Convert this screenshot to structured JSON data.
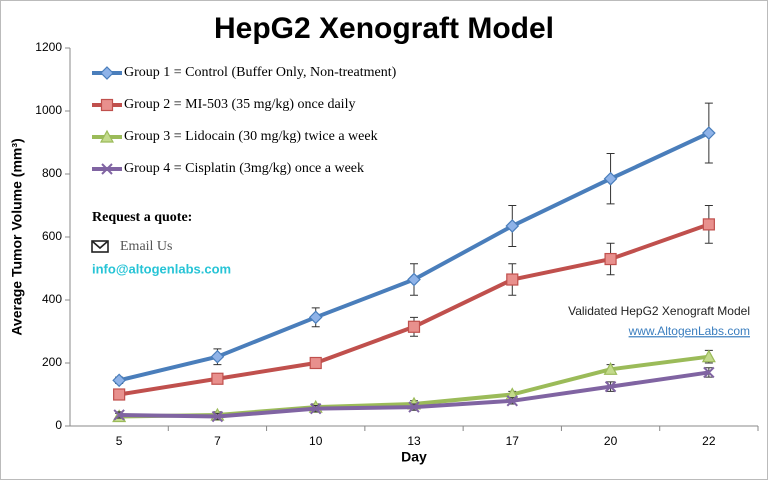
{
  "chart_data": {
    "type": "line",
    "title": "HepG2 Xenograft Model",
    "xlabel": "Day",
    "ylabel": "Average Tumor Volume (mm³)",
    "categories": [
      "5",
      "7",
      "10",
      "13",
      "17",
      "20",
      "22"
    ],
    "series": [
      {
        "name": "Group 1 = Control (Buffer Only, Non-treatment)",
        "color": "#4a7ebb",
        "marker": "diamond",
        "values": [
          145,
          220,
          345,
          465,
          635,
          785,
          930
        ],
        "errors": [
          10,
          25,
          30,
          50,
          65,
          80,
          95
        ]
      },
      {
        "name": "Group 2 = MI-503 (35 mg/kg) once daily",
        "color": "#c0504d",
        "marker": "square",
        "values": [
          100,
          150,
          200,
          315,
          465,
          530,
          640
        ],
        "errors": [
          10,
          10,
          10,
          30,
          50,
          50,
          60
        ]
      },
      {
        "name": "Group 3 = Lidocain (30 mg/kg) twice a week",
        "color": "#9bbb59",
        "marker": "triangle",
        "values": [
          30,
          35,
          60,
          70,
          100,
          180,
          220
        ],
        "errors": [
          10,
          10,
          10,
          10,
          10,
          15,
          20
        ]
      },
      {
        "name": "Group 4 = Cisplatin (3mg/kg) once a week",
        "color": "#8064a2",
        "marker": "x",
        "values": [
          35,
          30,
          55,
          60,
          80,
          125,
          170
        ],
        "errors": [
          10,
          10,
          10,
          10,
          10,
          15,
          15
        ]
      }
    ],
    "ylim": [
      0,
      1200
    ],
    "yticks": [
      0,
      200,
      400,
      600,
      800,
      1000,
      1200
    ],
    "legend": "top-left",
    "annotations": {
      "quote": "Request a quote:",
      "email_link": "Email Us",
      "email": "info@altogenlabs.com",
      "validated": "Validated HepG2 Xenograft Model",
      "website": "www.AltogenLabs.com"
    }
  }
}
